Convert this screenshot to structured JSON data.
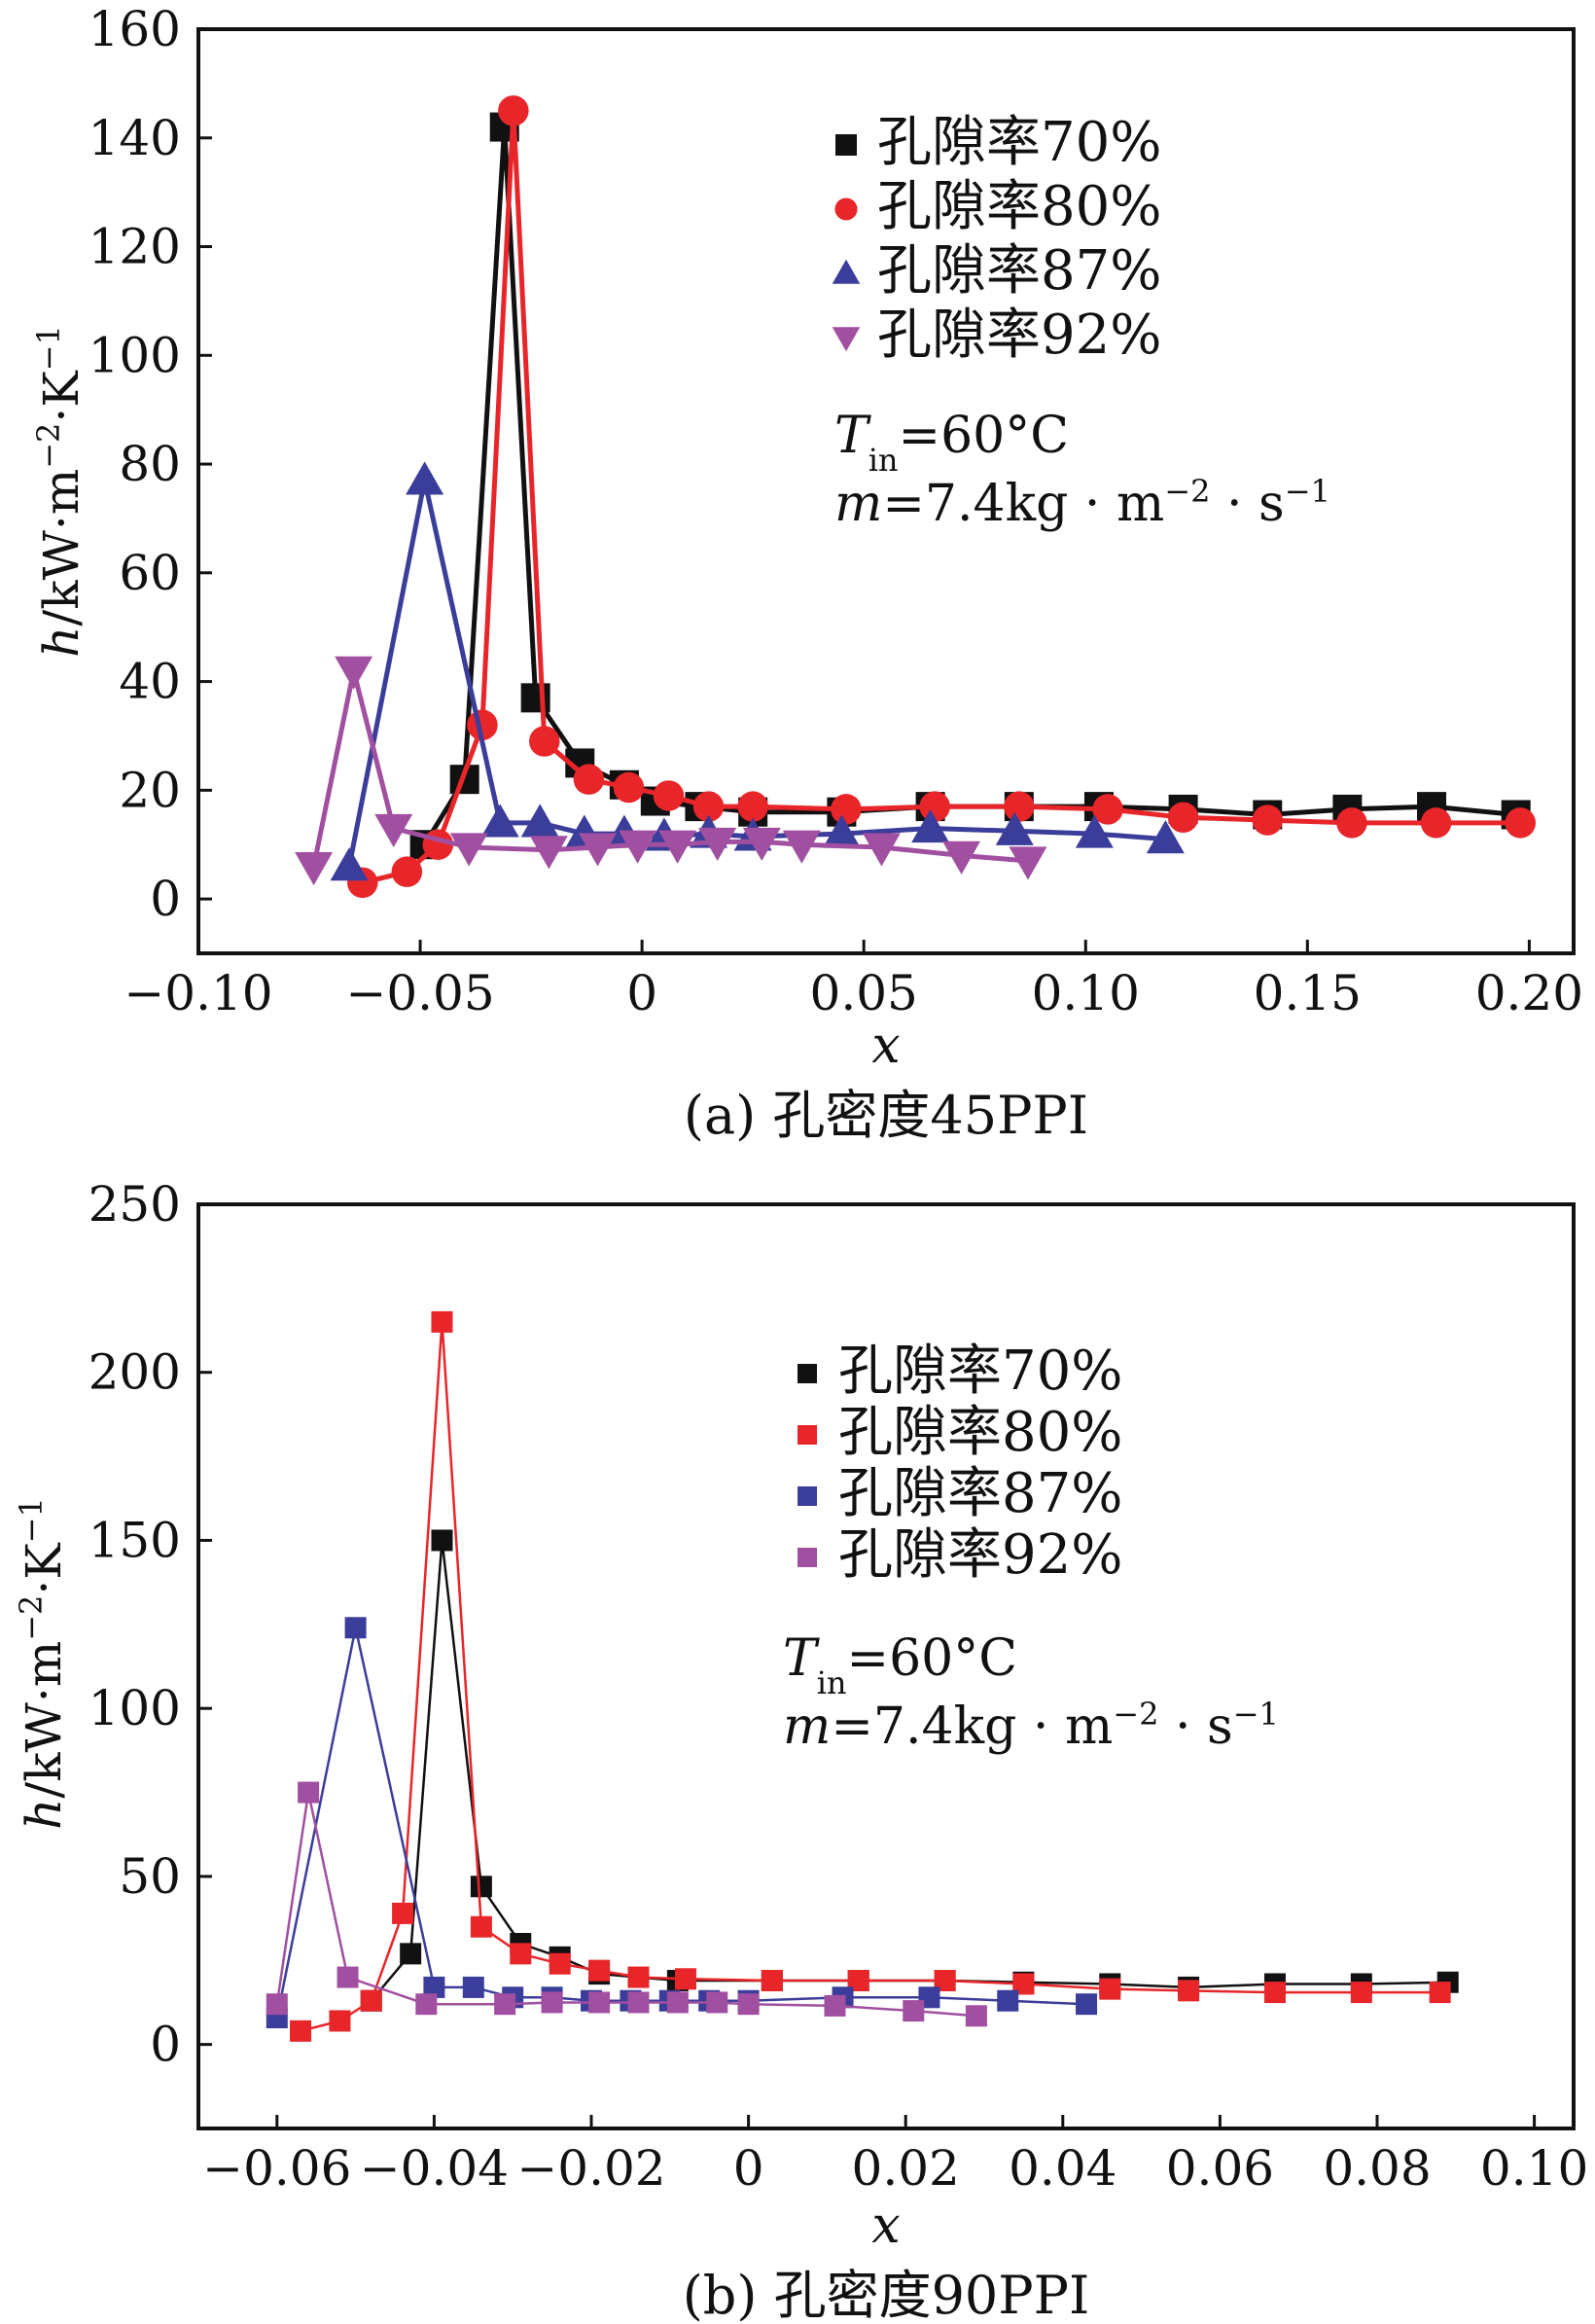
{
  "chart_data": [
    {
      "type": "line",
      "caption": "(a) 孔密度45PPI",
      "xlabel": "x",
      "ylabel": {
        "h": "h",
        "unit": "/kW·m",
        "exp1": "−2",
        "unit2": "·K",
        "exp2": "−1"
      },
      "xlim": [
        -0.1,
        0.21
      ],
      "ylim": [
        -10,
        160
      ],
      "x_ticks": [
        -0.1,
        -0.05,
        0,
        0.05,
        0.1,
        0.15,
        0.2
      ],
      "x_tick_labels": [
        "−0.10",
        "−0.05",
        "0",
        "0.05",
        "0.10",
        "0.15",
        "0.20"
      ],
      "y_ticks": [
        0,
        20,
        40,
        60,
        80,
        100,
        120,
        140,
        160
      ],
      "y_tick_labels": [
        "0",
        "20",
        "40",
        "60",
        "80",
        "100",
        "120",
        "140",
        "160"
      ],
      "conditions": {
        "t_symbol": "T",
        "t_sub": "in",
        "t_value": "=60°C",
        "m_symbol": "m",
        "m_value": "=7.4kg · m",
        "m_exp1": "−2",
        "m_mid": " · s",
        "m_exp2": "−1"
      },
      "series": [
        {
          "name": "孔隙率70%",
          "color": "#111111",
          "marker": "square",
          "x": [
            -0.049,
            -0.04,
            -0.031,
            -0.024,
            -0.014,
            -0.004,
            0.003,
            0.013,
            0.025,
            0.045,
            0.065,
            0.085,
            0.103,
            0.122,
            0.141,
            0.159,
            0.178,
            0.197
          ],
          "y": [
            10,
            22,
            142,
            37,
            25,
            21,
            18,
            17,
            16,
            16,
            17,
            17,
            17,
            16.5,
            15.5,
            16.5,
            17,
            15.5
          ]
        },
        {
          "name": "孔隙率80%",
          "color": "#e8262a",
          "marker": "circle",
          "x": [
            -0.063,
            -0.053,
            -0.046,
            -0.036,
            -0.029,
            -0.022,
            -0.012,
            -0.003,
            0.006,
            0.015,
            0.025,
            0.046,
            0.066,
            0.085,
            0.105,
            0.122,
            0.141,
            0.16,
            0.179,
            0.198
          ],
          "y": [
            3,
            5,
            10,
            32,
            145,
            29,
            22,
            20.5,
            19,
            17,
            17,
            16.5,
            17,
            17,
            16.5,
            15,
            14.5,
            14,
            14,
            14
          ]
        },
        {
          "name": "孔隙率87%",
          "color": "#3b3d9a",
          "marker": "triangle-up",
          "x": [
            -0.066,
            -0.049,
            -0.032,
            -0.023,
            -0.013,
            -0.004,
            0.005,
            0.015,
            0.025,
            0.045,
            0.065,
            0.084,
            0.102,
            0.118
          ],
          "y": [
            6,
            77,
            14,
            14,
            12,
            12,
            11.5,
            12,
            11.5,
            12,
            13,
            12.5,
            12,
            11
          ]
        },
        {
          "name": "孔隙率92%",
          "color": "#a14fa0",
          "marker": "triangle-down",
          "x": [
            -0.074,
            -0.065,
            -0.056,
            -0.039,
            -0.021,
            -0.01,
            -0.001,
            0.008,
            0.017,
            0.027,
            0.036,
            0.054,
            0.072,
            0.087
          ],
          "y": [
            6,
            42,
            13,
            9.5,
            9,
            9.5,
            10,
            10,
            10.5,
            10.5,
            10,
            9.5,
            8,
            7
          ]
        }
      ]
    },
    {
      "type": "line",
      "caption": "(b) 孔密度90PPI",
      "xlabel": "x",
      "ylabel": {
        "h": "h",
        "unit": "/kW·m",
        "exp1": "−2",
        "unit2": "·K",
        "exp2": "−1"
      },
      "xlim": [
        -0.07,
        0.105
      ],
      "ylim": [
        -25,
        250
      ],
      "x_ticks": [
        -0.06,
        -0.04,
        -0.02,
        0,
        0.02,
        0.04,
        0.06,
        0.08,
        0.1
      ],
      "x_tick_labels": [
        "−0.06",
        "−0.04",
        "−0.02",
        "0",
        "0.02",
        "0.04",
        "0.06",
        "0.08",
        "0.10"
      ],
      "y_ticks": [
        0,
        50,
        100,
        150,
        200,
        250
      ],
      "y_tick_labels": [
        "0",
        "50",
        "100",
        "150",
        "200",
        "250"
      ],
      "conditions": {
        "t_symbol": "T",
        "t_sub": "in",
        "t_value": "=60°C",
        "m_symbol": "m",
        "m_value": "=7.4kg · m",
        "m_exp1": "−2",
        "m_mid": " · s",
        "m_exp2": "−1"
      },
      "series": [
        {
          "name": "孔隙率70%",
          "color": "#111111",
          "marker": "square",
          "x": [
            -0.048,
            -0.043,
            -0.039,
            -0.034,
            -0.029,
            -0.024,
            -0.019,
            -0.009,
            0.003,
            0.014,
            0.025,
            0.035,
            0.046,
            0.056,
            0.067,
            0.078,
            0.089
          ],
          "y": [
            13,
            27,
            150,
            47,
            30,
            26,
            21,
            19,
            19,
            19,
            19,
            18.5,
            18,
            17,
            18,
            18,
            18.5
          ]
        },
        {
          "name": "孔隙率80%",
          "color": "#e8262a",
          "marker": "square",
          "x": [
            -0.057,
            -0.052,
            -0.048,
            -0.044,
            -0.039,
            -0.034,
            -0.029,
            -0.024,
            -0.019,
            -0.014,
            -0.008,
            0.003,
            0.014,
            0.025,
            0.035,
            0.046,
            0.056,
            0.067,
            0.078,
            0.088
          ],
          "y": [
            4,
            7,
            13,
            39,
            215,
            35,
            27,
            24,
            22,
            20,
            19.5,
            19,
            19,
            19,
            18,
            16.5,
            16,
            15.5,
            15.5,
            15.5
          ]
        },
        {
          "name": "孔隙率87%",
          "color": "#3b3d9a",
          "marker": "square",
          "x": [
            -0.06,
            -0.05,
            -0.04,
            -0.035,
            -0.03,
            -0.025,
            -0.02,
            -0.015,
            -0.01,
            -0.005,
            0.0,
            0.012,
            0.023,
            0.033,
            0.043
          ],
          "y": [
            8,
            124,
            17,
            17,
            14,
            14,
            13,
            13,
            13,
            13,
            13,
            14,
            14,
            13,
            12
          ]
        },
        {
          "name": "孔隙率92%",
          "color": "#a14fa0",
          "marker": "square",
          "x": [
            -0.06,
            -0.056,
            -0.051,
            -0.041,
            -0.031,
            -0.025,
            -0.019,
            -0.014,
            -0.009,
            -0.004,
            0.0,
            0.011,
            0.021,
            0.029
          ],
          "y": [
            12,
            75,
            20,
            12,
            12,
            12.5,
            12.5,
            12.5,
            12.5,
            12.5,
            12,
            11.5,
            10,
            8.5
          ]
        }
      ]
    }
  ]
}
